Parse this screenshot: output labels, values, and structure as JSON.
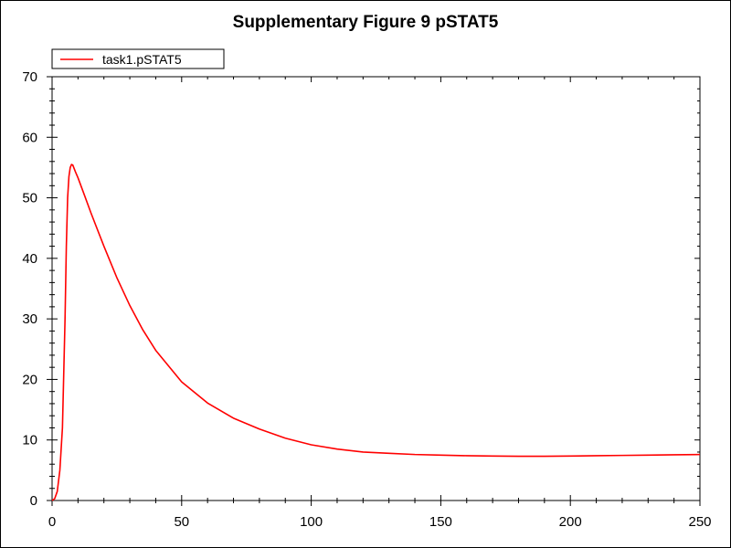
{
  "chart_data": {
    "type": "line",
    "title": "Supplementary Figure 9 pSTAT5",
    "xlabel": "",
    "ylabel": "",
    "xlim": [
      0,
      250
    ],
    "ylim": [
      0,
      70
    ],
    "xticks": [
      0,
      50,
      100,
      150,
      200,
      250
    ],
    "yticks": [
      0,
      10,
      20,
      30,
      40,
      50,
      60,
      70
    ],
    "grid": false,
    "legend_position": "top-left",
    "series": [
      {
        "name": "task1.pSTAT5",
        "color": "#ff0000",
        "x": [
          0,
          1,
          2,
          3,
          4,
          5,
          5.5,
          6,
          6.5,
          7,
          7.5,
          8,
          9,
          10,
          12,
          15,
          20,
          25,
          30,
          35,
          40,
          50,
          60,
          70,
          80,
          90,
          100,
          110,
          120,
          130,
          140,
          150,
          160,
          170,
          180,
          190,
          200,
          210,
          220,
          230,
          240,
          250
        ],
        "y": [
          0,
          0.3,
          1.5,
          5,
          12,
          30,
          42,
          50,
          53.5,
          55,
          55.5,
          55.4,
          54.3,
          53.3,
          51,
          47.5,
          42,
          36.8,
          32.2,
          28.2,
          24.8,
          19.6,
          16.1,
          13.6,
          11.8,
          10.3,
          9.2,
          8.5,
          8.0,
          7.8,
          7.6,
          7.5,
          7.4,
          7.35,
          7.3,
          7.3,
          7.35,
          7.4,
          7.45,
          7.5,
          7.55,
          7.6
        ]
      }
    ]
  }
}
